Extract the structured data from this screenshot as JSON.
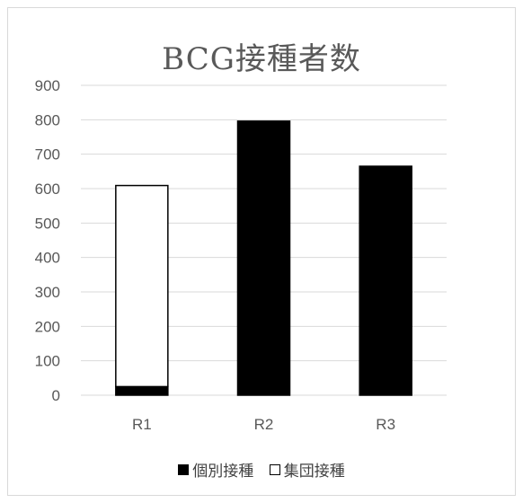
{
  "chart_data": {
    "type": "bar",
    "stacked": true,
    "title": "BCG接種者数",
    "categories": [
      "R1",
      "R2",
      "R3"
    ],
    "series": [
      {
        "name": "個別接種",
        "values": [
          25,
          796,
          665
        ],
        "color": "#000000"
      },
      {
        "name": "集団接種",
        "values": [
          584,
          0,
          0
        ],
        "color": "#ffffff"
      }
    ],
    "ylim": [
      0,
      900
    ],
    "yticks": [
      0,
      100,
      200,
      300,
      400,
      500,
      600,
      700,
      800,
      900
    ],
    "grid": true,
    "legend_position": "bottom"
  }
}
